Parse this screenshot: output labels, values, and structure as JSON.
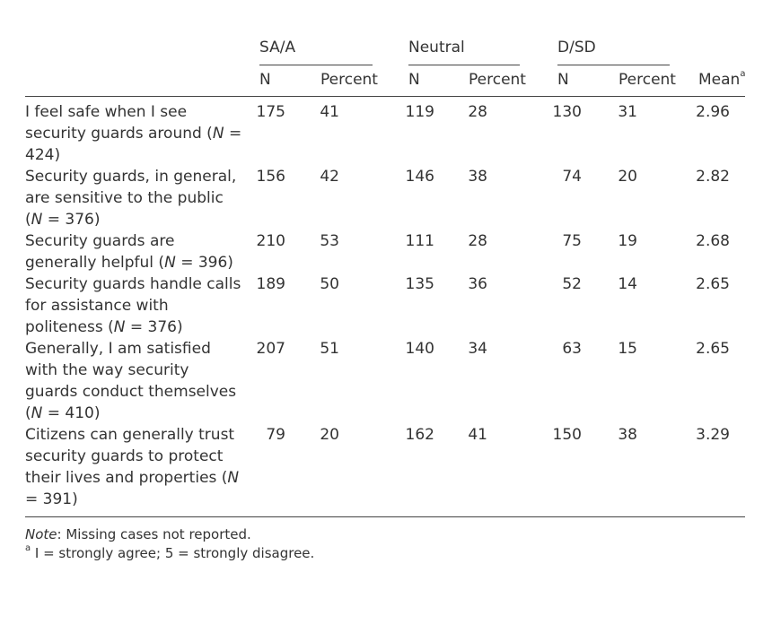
{
  "groups": [
    {
      "label": "SA/A"
    },
    {
      "label": "Neutral"
    },
    {
      "label": "D/SD"
    }
  ],
  "subheaders": {
    "n": "N",
    "percent": "Percent",
    "mean": "Mean",
    "mean_sup": "a"
  },
  "rows": [
    {
      "pre": "I feel safe when I see security guards around (",
      "n_label": "N",
      "post": " = 424)",
      "values": [
        "175",
        "41",
        "119",
        "28",
        "130",
        "31",
        "2.96"
      ]
    },
    {
      "pre": "Security guards, in general, are sensitive to the public (",
      "n_label": "N",
      "post": " = 376)",
      "values": [
        "156",
        "42",
        "146",
        "38",
        "74",
        "20",
        "2.82"
      ]
    },
    {
      "pre": "Security guards are generally helpful (",
      "n_label": "N",
      "post": " = 396)",
      "values": [
        "210",
        "53",
        "111",
        "28",
        "75",
        "19",
        "2.68"
      ]
    },
    {
      "pre": "Security guards handle calls for assistance with politeness (",
      "n_label": "N",
      "post": " = 376)",
      "values": [
        "189",
        "50",
        "135",
        "36",
        "52",
        "14",
        "2.65"
      ]
    },
    {
      "pre": "Generally, I am satisfied with the way security guards conduct themselves (",
      "n_label": "N",
      "post": " = 410)",
      "values": [
        "207",
        "51",
        "140",
        "34",
        "63",
        "15",
        "2.65"
      ]
    },
    {
      "pre": "Citizens can generally trust security guards to protect their lives and properties (",
      "n_label": "N",
      "post": " = 391)",
      "values": [
        "79",
        "20",
        "162",
        "41",
        "150",
        "38",
        "3.29"
      ]
    }
  ],
  "notes": {
    "note_label": "Note",
    "note_text": ": Missing cases not reported.",
    "footnote_mark": "a",
    "footnote_text": " I = strongly agree; 5 = strongly disagree."
  }
}
